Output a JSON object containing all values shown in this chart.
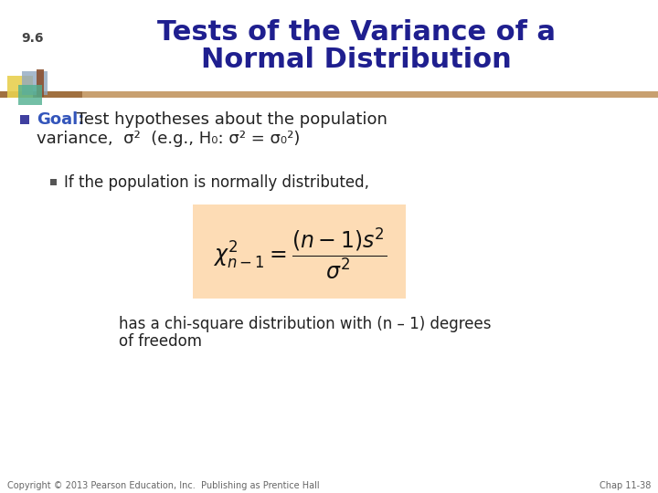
{
  "title_line1": "Tests of the Variance of a",
  "title_line2": "Normal Distribution",
  "title_color": "#1F1F8F",
  "section_number": "9.6",
  "section_number_color": "#444444",
  "bullet_color": "#4040A0",
  "bullet_text_goal": "Goal",
  "sub_bullet_text": "If the population is normally distributed,",
  "formula_bg_color": "#FDDCB5",
  "formula_text": "$\\chi^2_{n-1} = \\dfrac{(n-1)s^2}{\\sigma^2}$",
  "footer_left": "Copyright © 2013 Pearson Education, Inc.  Publishing as Prentice Hall",
  "footer_right": "Chap 11-38",
  "footer_color": "#666666",
  "bg_color": "#FFFFFF",
  "bar_color_dark": "#A07040",
  "bar_color_light": "#C8A070",
  "icon_yellow": "#E8D050",
  "icon_blue": "#90A8C0",
  "icon_green": "#50B090",
  "icon_brown": "#8B5030"
}
